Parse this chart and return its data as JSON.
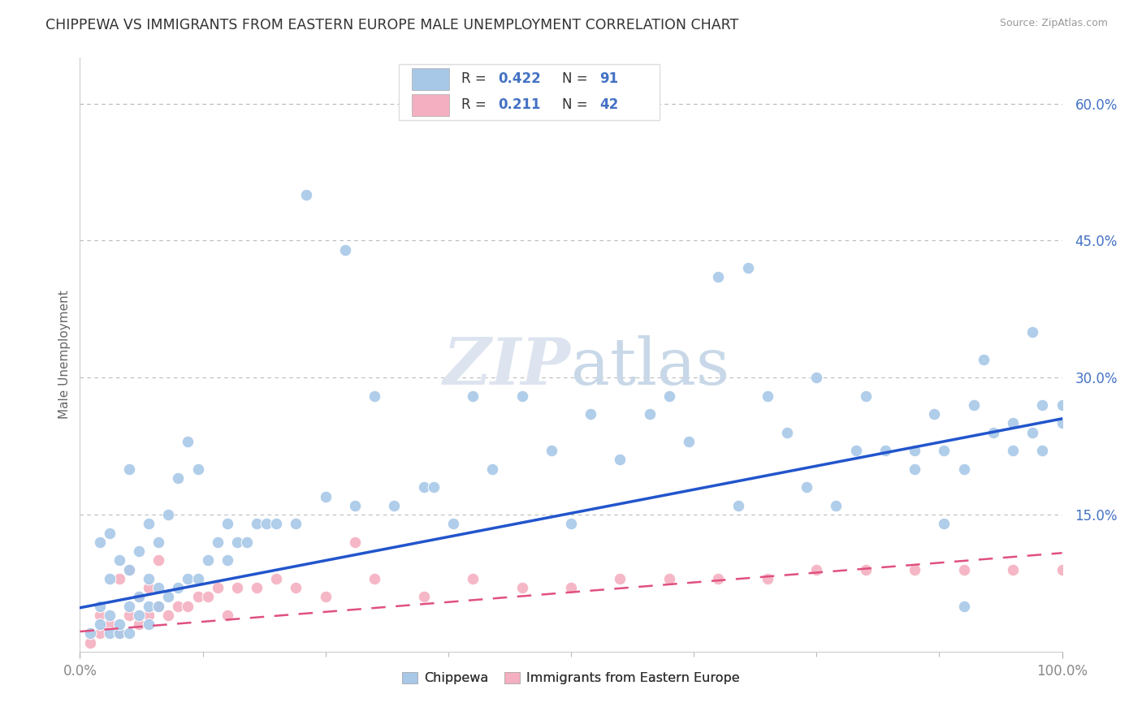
{
  "title": "CHIPPEWA VS IMMIGRANTS FROM EASTERN EUROPE MALE UNEMPLOYMENT CORRELATION CHART",
  "source": "Source: ZipAtlas.com",
  "ylabel": "Male Unemployment",
  "xlim": [
    0,
    1
  ],
  "ylim": [
    0,
    0.65
  ],
  "yticks": [
    0.0,
    0.15,
    0.3,
    0.45,
    0.6
  ],
  "ytick_labels": [
    "",
    "15.0%",
    "30.0%",
    "45.0%",
    "60.0%"
  ],
  "chippewa_color": "#a8c8e8",
  "eastern_color": "#f4b0c0",
  "trendline_blue": "#2255cc",
  "trendline_pink": "#e05080",
  "background_color": "#ffffff",
  "grid_color": "#bbbbbb",
  "watermark_color": "#dde4f0",
  "chip_trendline_x0": 0.0,
  "chip_trendline_y0": 0.048,
  "chip_trendline_x1": 1.0,
  "chip_trendline_y1": 0.255,
  "east_trendline_x0": 0.0,
  "east_trendline_y0": 0.022,
  "east_trendline_x1": 1.0,
  "east_trendline_y1": 0.108,
  "chippewa_x": [
    0.01,
    0.02,
    0.02,
    0.02,
    0.03,
    0.03,
    0.03,
    0.03,
    0.04,
    0.04,
    0.04,
    0.05,
    0.05,
    0.05,
    0.05,
    0.06,
    0.06,
    0.06,
    0.07,
    0.07,
    0.07,
    0.07,
    0.08,
    0.08,
    0.08,
    0.09,
    0.09,
    0.1,
    0.1,
    0.11,
    0.11,
    0.12,
    0.12,
    0.13,
    0.14,
    0.15,
    0.15,
    0.16,
    0.17,
    0.18,
    0.19,
    0.2,
    0.22,
    0.23,
    0.25,
    0.27,
    0.28,
    0.3,
    0.32,
    0.35,
    0.36,
    0.38,
    0.4,
    0.42,
    0.45,
    0.48,
    0.5,
    0.52,
    0.55,
    0.58,
    0.6,
    0.62,
    0.65,
    0.67,
    0.68,
    0.7,
    0.72,
    0.74,
    0.75,
    0.77,
    0.79,
    0.8,
    0.82,
    0.85,
    0.87,
    0.88,
    0.9,
    0.91,
    0.92,
    0.95,
    0.97,
    0.98,
    1.0,
    1.0,
    0.98,
    0.97,
    0.95,
    0.93,
    0.9,
    0.88,
    0.85
  ],
  "chippewa_y": [
    0.02,
    0.03,
    0.05,
    0.12,
    0.02,
    0.04,
    0.08,
    0.13,
    0.02,
    0.03,
    0.1,
    0.02,
    0.05,
    0.09,
    0.2,
    0.04,
    0.06,
    0.11,
    0.03,
    0.05,
    0.08,
    0.14,
    0.05,
    0.07,
    0.12,
    0.06,
    0.15,
    0.07,
    0.19,
    0.08,
    0.23,
    0.08,
    0.2,
    0.1,
    0.12,
    0.1,
    0.14,
    0.12,
    0.12,
    0.14,
    0.14,
    0.14,
    0.14,
    0.5,
    0.17,
    0.44,
    0.16,
    0.28,
    0.16,
    0.18,
    0.18,
    0.14,
    0.28,
    0.2,
    0.28,
    0.22,
    0.14,
    0.26,
    0.21,
    0.26,
    0.28,
    0.23,
    0.41,
    0.16,
    0.42,
    0.28,
    0.24,
    0.18,
    0.3,
    0.16,
    0.22,
    0.28,
    0.22,
    0.2,
    0.26,
    0.22,
    0.05,
    0.27,
    0.32,
    0.25,
    0.35,
    0.27,
    0.27,
    0.25,
    0.22,
    0.24,
    0.22,
    0.24,
    0.2,
    0.14,
    0.22
  ],
  "eastern_x": [
    0.01,
    0.02,
    0.02,
    0.03,
    0.04,
    0.04,
    0.05,
    0.05,
    0.06,
    0.06,
    0.07,
    0.07,
    0.08,
    0.08,
    0.09,
    0.1,
    0.11,
    0.12,
    0.13,
    0.14,
    0.15,
    0.16,
    0.18,
    0.2,
    0.22,
    0.25,
    0.28,
    0.3,
    0.35,
    0.4,
    0.45,
    0.5,
    0.55,
    0.6,
    0.65,
    0.7,
    0.75,
    0.8,
    0.85,
    0.9,
    0.95,
    1.0
  ],
  "eastern_y": [
    0.01,
    0.02,
    0.04,
    0.03,
    0.02,
    0.08,
    0.04,
    0.09,
    0.03,
    0.06,
    0.04,
    0.07,
    0.05,
    0.1,
    0.04,
    0.05,
    0.05,
    0.06,
    0.06,
    0.07,
    0.04,
    0.07,
    0.07,
    0.08,
    0.07,
    0.06,
    0.12,
    0.08,
    0.06,
    0.08,
    0.07,
    0.07,
    0.08,
    0.08,
    0.08,
    0.08,
    0.09,
    0.09,
    0.09,
    0.09,
    0.09,
    0.09
  ]
}
